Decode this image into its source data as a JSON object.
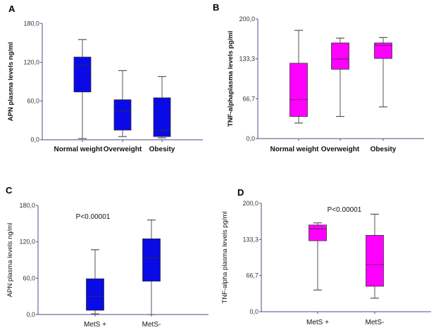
{
  "colors": {
    "blue": "#0a0ae6",
    "magenta": "#ff00ff",
    "whisker": "#555555",
    "axis": "#4b4b8c"
  },
  "chart_data": [
    {
      "panel": "A",
      "type": "box",
      "ylabel": "APN plasma levels ng/ml",
      "ylim": [
        0,
        180
      ],
      "yticks": [
        "0,0",
        "60,0",
        "120,0",
        "180,0"
      ],
      "ytick_values": [
        0,
        60,
        120,
        180
      ],
      "categories": [
        "Normal weight",
        "Overweight",
        "Obesity"
      ],
      "color": "blue",
      "boxes": [
        {
          "min": 2,
          "q1": 74,
          "median": 115,
          "q3": 128,
          "max": 155
        },
        {
          "min": 5,
          "q1": 15,
          "median": 45,
          "q3": 62,
          "max": 107
        },
        {
          "min": 3,
          "q1": 5,
          "median": 15,
          "q3": 65,
          "max": 98
        }
      ]
    },
    {
      "panel": "B",
      "type": "box",
      "ylabel": "TNF-alphaplasma levels pg/ml",
      "ylim": [
        0,
        200
      ],
      "yticks": [
        "0,0",
        "66,7",
        "133,3",
        "200,0"
      ],
      "ytick_values": [
        0,
        66.7,
        133.3,
        200
      ],
      "categories": [
        "Normal weight",
        "Overweight",
        "Obesity"
      ],
      "color": "magenta",
      "boxes": [
        {
          "min": 26,
          "q1": 37,
          "median": 65,
          "q3": 126,
          "max": 181
        },
        {
          "min": 37,
          "q1": 116,
          "median": 133,
          "q3": 160,
          "max": 168
        },
        {
          "min": 53,
          "q1": 134,
          "median": 156,
          "q3": 160,
          "max": 169
        }
      ]
    },
    {
      "panel": "C",
      "type": "box",
      "ylabel": "APN plasma levels ng/ml",
      "ylim": [
        0,
        180
      ],
      "yticks": [
        "0,0",
        "60,0",
        "120,0",
        "180,0"
      ],
      "ytick_values": [
        0,
        60,
        120,
        180
      ],
      "categories": [
        "MetS +",
        "MetS-"
      ],
      "color": "blue",
      "annotation": "P<0.00001",
      "boxes": [
        {
          "min": 1,
          "q1": 7,
          "median": 30,
          "q3": 59,
          "max": 107
        },
        {
          "min": 0,
          "q1": 55,
          "median": 94,
          "q3": 125,
          "max": 156
        }
      ]
    },
    {
      "panel": "D",
      "type": "box",
      "ylabel": "TNF-alpha plasma levels pg/ml",
      "ylim": [
        0,
        200
      ],
      "yticks": [
        "0,0",
        "66,7",
        "133,3",
        "200,0"
      ],
      "ytick_values": [
        0,
        66.7,
        133.3,
        200
      ],
      "categories": [
        "MetS +",
        "MetS-"
      ],
      "color": "magenta",
      "annotation": "P<0.00001",
      "boxes": [
        {
          "min": 40,
          "q1": 131,
          "median": 153,
          "q3": 160,
          "max": 164
        },
        {
          "min": 25,
          "q1": 47,
          "median": 87,
          "q3": 141,
          "max": 180
        }
      ]
    }
  ]
}
